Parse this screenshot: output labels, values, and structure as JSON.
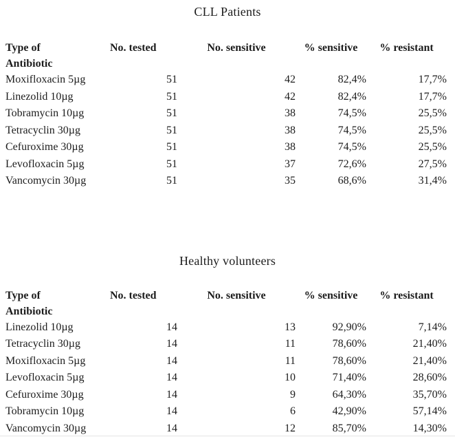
{
  "tables": [
    {
      "title": "CLL Patients",
      "headers": {
        "antibiotic": "Type of\nAntibiotic",
        "tested": "No. tested",
        "sensitive_n": "No. sensitive",
        "sensitive_pct": "% sensitive",
        "resistant_pct": "% resistant"
      },
      "rows": [
        {
          "antibiotic": "Moxifloxacin 5µg",
          "tested": "51",
          "sensitive_n": "42",
          "sensitive_pct": "82,4%",
          "resistant_pct": "17,7%"
        },
        {
          "antibiotic": "Linezolid 10µg",
          "tested": "51",
          "sensitive_n": "42",
          "sensitive_pct": "82,4%",
          "resistant_pct": "17,7%"
        },
        {
          "antibiotic": "Tobramycin 10µg",
          "tested": "51",
          "sensitive_n": "38",
          "sensitive_pct": "74,5%",
          "resistant_pct": "25,5%"
        },
        {
          "antibiotic": "Tetracyclin 30µg",
          "tested": "51",
          "sensitive_n": "38",
          "sensitive_pct": "74,5%",
          "resistant_pct": "25,5%"
        },
        {
          "antibiotic": "Cefuroxime 30µg",
          "tested": "51",
          "sensitive_n": "38",
          "sensitive_pct": "74,5%",
          "resistant_pct": "25,5%"
        },
        {
          "antibiotic": "Levofloxacin 5µg",
          "tested": "51",
          "sensitive_n": "37",
          "sensitive_pct": "72,6%",
          "resistant_pct": "27,5%"
        },
        {
          "antibiotic": "Vancomycin 30µg",
          "tested": "51",
          "sensitive_n": "35",
          "sensitive_pct": "68,6%",
          "resistant_pct": "31,4%"
        }
      ]
    },
    {
      "title": "Healthy volunteers",
      "headers": {
        "antibiotic": "Type of\nAntibiotic",
        "tested": "No. tested",
        "sensitive_n": "No. sensitive",
        "sensitive_pct": "% sensitive",
        "resistant_pct": "% resistant"
      },
      "rows": [
        {
          "antibiotic": "Linezolid 10µg",
          "tested": "14",
          "sensitive_n": "13",
          "sensitive_pct": "92,90%",
          "resistant_pct": "7,14%"
        },
        {
          "antibiotic": "Tetracyclin 30µg",
          "tested": "14",
          "sensitive_n": "11",
          "sensitive_pct": "78,60%",
          "resistant_pct": "21,40%"
        },
        {
          "antibiotic": "Moxifloxacin 5µg",
          "tested": "14",
          "sensitive_n": "11",
          "sensitive_pct": "78,60%",
          "resistant_pct": "21,40%"
        },
        {
          "antibiotic": "Levofloxacin 5µg",
          "tested": "14",
          "sensitive_n": "10",
          "sensitive_pct": "71,40%",
          "resistant_pct": "28,60%"
        },
        {
          "antibiotic": "Cefuroxime 30µg",
          "tested": "14",
          "sensitive_n": "9",
          "sensitive_pct": "64,30%",
          "resistant_pct": "35,70%"
        },
        {
          "antibiotic": "Tobramycin 10µg",
          "tested": "14",
          "sensitive_n": "6",
          "sensitive_pct": "42,90%",
          "resistant_pct": "57,14%"
        },
        {
          "antibiotic": "Vancomycin 30µg",
          "tested": "14",
          "sensitive_n": "12",
          "sensitive_pct": "85,70%",
          "resistant_pct": "14,30%"
        }
      ]
    }
  ]
}
